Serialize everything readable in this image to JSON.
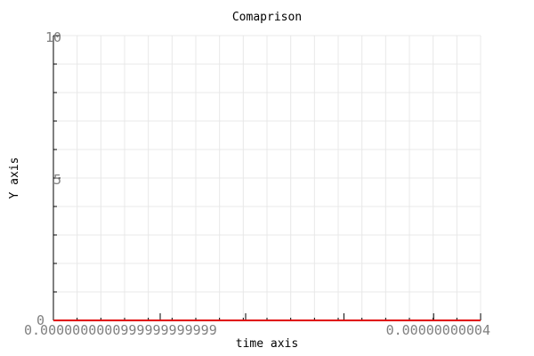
{
  "chart_data": {
    "type": "line",
    "title": "Comaprison",
    "xlabel": "time axis",
    "ylabel": "Y axis",
    "ylim": [
      0,
      10
    ],
    "y_ticks": [
      "0",
      "5",
      "10"
    ],
    "x_tick_labels": [
      "0.0000000000999999999999",
      "0.00000000004"
    ],
    "grid": true,
    "series": [
      {
        "color": "#e00000",
        "x": [
          0,
          1
        ],
        "y": [
          0,
          0
        ]
      }
    ]
  }
}
